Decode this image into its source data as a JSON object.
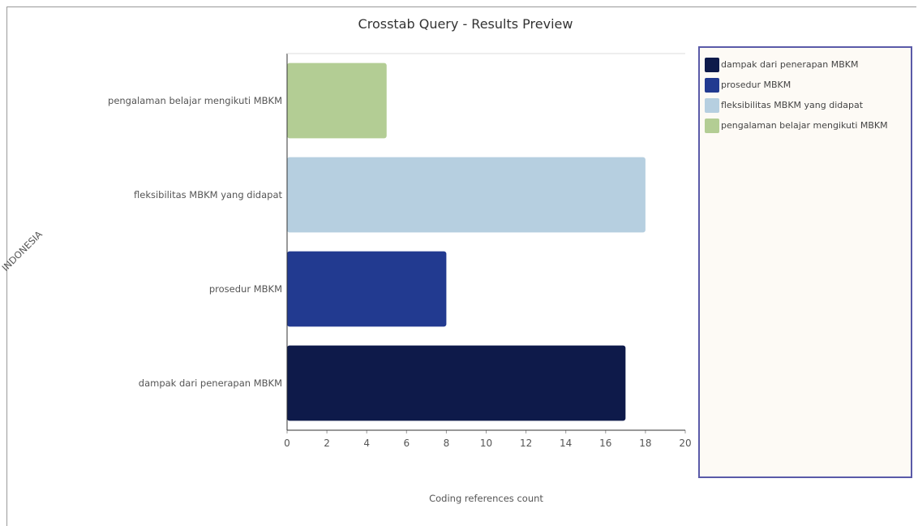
{
  "chart_data": {
    "type": "bar",
    "orientation": "horizontal",
    "title": "Crosstab Query - Results Preview",
    "xlabel": "Coding references count",
    "ylabel": "INDONESIA",
    "xlim": [
      0,
      20
    ],
    "xticks": [
      "0",
      "2",
      "4",
      "6",
      "8",
      "10",
      "12",
      "14",
      "16",
      "18",
      "20"
    ],
    "categories": [
      "dampak dari penerapan MBKM",
      "prosedur MBKM",
      "fleksibilitas MBKM yang didapat",
      "pengalaman belajar mengikuti MBKM"
    ],
    "values": [
      17,
      8,
      18,
      5
    ],
    "colors": [
      "#0e1a4a",
      "#223a90",
      "#b6cfe0",
      "#b3cd94"
    ],
    "legend": {
      "placement": "right",
      "entries": [
        {
          "label": "dampak dari penerapan MBKM",
          "color": "#0e1a4a"
        },
        {
          "label": "prosedur MBKM",
          "color": "#223a90"
        },
        {
          "label": "fleksibilitas MBKM yang didapat",
          "color": "#b6cfe0"
        },
        {
          "label": "pengalaman belajar mengikuti MBKM",
          "color": "#b3cd94"
        }
      ]
    },
    "grid": false
  }
}
